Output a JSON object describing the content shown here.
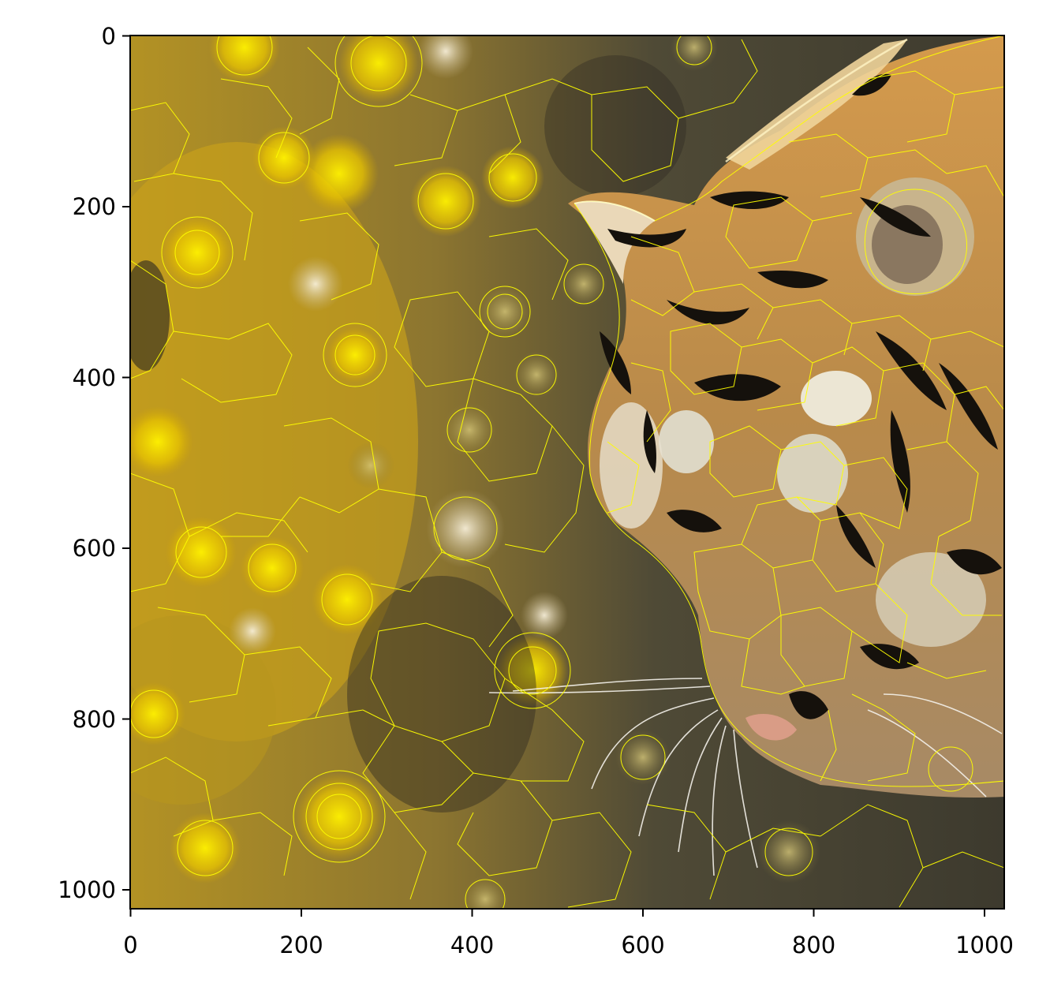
{
  "figure": {
    "image_subject": "tiger face with superpixel segmentation boundaries over a bokeh background",
    "boundary_color": "#ffff00",
    "axes_color": "#000000"
  },
  "axes": {
    "x_ticks": [
      "0",
      "200",
      "400",
      "600",
      "800",
      "1000"
    ],
    "y_ticks": [
      "0",
      "200",
      "400",
      "600",
      "800",
      "1000"
    ],
    "x_range": [
      0,
      1024
    ],
    "y_range": [
      0,
      1024
    ]
  }
}
